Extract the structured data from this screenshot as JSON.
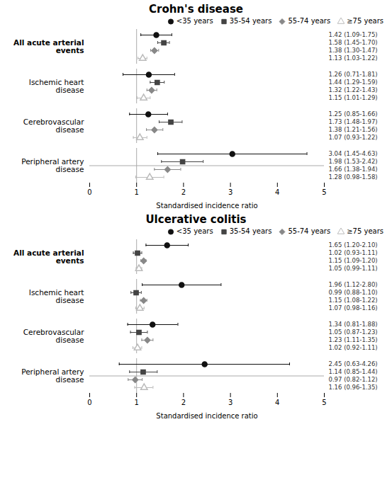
{
  "chart_data": [
    {
      "type": "forest",
      "title": "Crohn's disease",
      "categories": [
        "All acute arterial\nevents",
        "Ischemic heart\ndisease",
        "Cerebrovascular\ndisease",
        "Peripheral artery\ndisease"
      ],
      "series": [
        {
          "name": "<35 years",
          "color": "#111111",
          "marker": "circle",
          "values": [
            1.42,
            1.26,
            1.25,
            3.04
          ],
          "ci_low": [
            1.09,
            0.71,
            0.85,
            1.45
          ],
          "ci_high": [
            1.75,
            1.81,
            1.66,
            4.63
          ],
          "value_labels": [
            "1.42 (1.09-1.75)",
            "1.26 (0.71-1.81)",
            "1.25 (0.85-1.66)",
            "3.04 (1.45-4.63)"
          ]
        },
        {
          "name": "35-54 years",
          "color": "#444444",
          "marker": "square",
          "values": [
            1.58,
            1.44,
            1.73,
            1.98
          ],
          "ci_low": [
            1.45,
            1.29,
            1.48,
            1.53
          ],
          "ci_high": [
            1.7,
            1.59,
            1.97,
            2.42
          ],
          "value_labels": [
            "1.58 (1.45-1.70)",
            "1.44 (1.29-1.59)",
            "1.73 (1.48-1.97)",
            "1.98 (1.53-2.42)"
          ]
        },
        {
          "name": "55-74 years",
          "color": "#888888",
          "marker": "diamond",
          "values": [
            1.38,
            1.32,
            1.38,
            1.66
          ],
          "ci_low": [
            1.3,
            1.22,
            1.21,
            1.38
          ],
          "ci_high": [
            1.47,
            1.43,
            1.56,
            1.94
          ],
          "value_labels": [
            "1.38 (1.30-1.47)",
            "1.32 (1.22-1.43)",
            "1.38 (1.21-1.56)",
            "1.66 (1.38-1.94)"
          ]
        },
        {
          "name": "≥75 years",
          "color": "#bbbbbb",
          "marker": "triangle-open",
          "values": [
            1.13,
            1.15,
            1.07,
            1.28
          ],
          "ci_low": [
            1.03,
            1.01,
            0.93,
            0.98
          ],
          "ci_high": [
            1.22,
            1.29,
            1.22,
            1.58
          ],
          "value_labels": [
            "1.13 (1.03-1.22)",
            "1.15 (1.01-1.29)",
            "1.07 (0.93-1.22)",
            "1.28 (0.98-1.58)"
          ]
        }
      ],
      "xlabel": "Standardised incidence ratio",
      "xlim": [
        0,
        5
      ],
      "xticks": [
        0,
        1,
        2,
        3,
        4,
        5
      ],
      "ref_line": 1,
      "legend": "upper right",
      "data_labels": true
    },
    {
      "type": "forest",
      "title": "Ulcerative colitis",
      "categories": [
        "All acute arterial\nevents",
        "Ischemic heart\ndisease",
        "Cerebrovascular\ndisease",
        "Peripheral artery\ndisease"
      ],
      "series": [
        {
          "name": "<35 years",
          "color": "#111111",
          "marker": "circle",
          "values": [
            1.65,
            1.96,
            1.34,
            2.45
          ],
          "ci_low": [
            1.2,
            1.12,
            0.81,
            0.63
          ],
          "ci_high": [
            2.1,
            2.8,
            1.88,
            4.26
          ],
          "value_labels": [
            "1.65 (1.20-2.10)",
            "1.96 (1.12-2.80)",
            "1.34 (0.81-1.88)",
            "2.45 (0.63-4.26)"
          ]
        },
        {
          "name": "35-54 years",
          "color": "#444444",
          "marker": "square",
          "values": [
            1.02,
            0.99,
            1.05,
            1.14
          ],
          "ci_low": [
            0.93,
            0.88,
            0.87,
            0.85
          ],
          "ci_high": [
            1.11,
            1.1,
            1.23,
            1.44
          ],
          "value_labels": [
            "1.02 (0.93-1.11)",
            "0.99 (0.88-1.10)",
            "1.05 (0.87-1.23)",
            "1.14 (0.85-1.44)"
          ]
        },
        {
          "name": "55-74 years",
          "color": "#888888",
          "marker": "diamond",
          "values": [
            1.15,
            1.15,
            1.23,
            0.97
          ],
          "ci_low": [
            1.09,
            1.08,
            1.11,
            0.82
          ],
          "ci_high": [
            1.2,
            1.22,
            1.35,
            1.12
          ],
          "value_labels": [
            "1.15 (1.09-1.20)",
            "1.15 (1.08-1.22)",
            "1.23 (1.11-1.35)",
            "0.97 (0.82-1.12)"
          ]
        },
        {
          "name": "≥75 years",
          "color": "#bbbbbb",
          "marker": "triangle-open",
          "values": [
            1.05,
            1.07,
            1.02,
            1.16
          ],
          "ci_low": [
            0.99,
            0.98,
            0.92,
            0.96
          ],
          "ci_high": [
            1.11,
            1.16,
            1.11,
            1.35
          ],
          "value_labels": [
            "1.05 (0.99-1.11)",
            "1.07 (0.98-1.16)",
            "1.02 (0.92-1.11)",
            "1.16 (0.96-1.35)"
          ]
        }
      ],
      "xlabel": "Standardised incidence ratio",
      "xlim": [
        0,
        5
      ],
      "xticks": [
        0,
        1,
        2,
        3,
        4,
        5
      ],
      "ref_line": 1,
      "legend": "upper right",
      "data_labels": true
    }
  ]
}
